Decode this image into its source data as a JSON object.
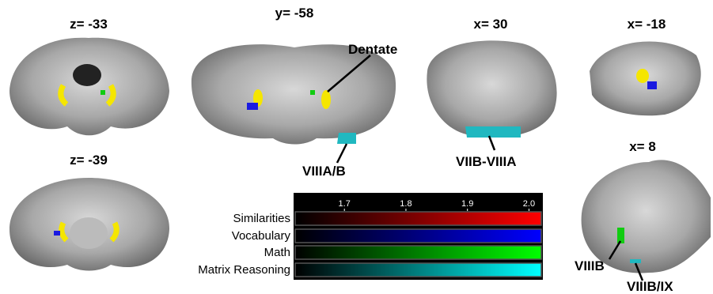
{
  "panels": [
    {
      "label": "z= -33"
    },
    {
      "label": "y= -58"
    },
    {
      "label": "x= 30"
    },
    {
      "label": "x= -18"
    },
    {
      "label": "z= -39"
    },
    {
      "label": "x= 8"
    }
  ],
  "annotations": [
    "Dentate",
    "VIIIA/B",
    "VIIB-VIIIA",
    "VIIIB",
    "VIIIB/IX"
  ],
  "colorbar": {
    "range": [
      1.62,
      2.02
    ],
    "ticks": [
      1.7,
      1.8,
      1.9,
      {
        "value": 2,
        "label": "2.0"
      }
    ],
    "rows": [
      {
        "name": "Similarities",
        "color": "#ff0000"
      },
      {
        "name": "Vocabulary",
        "color": "#0000ff"
      },
      {
        "name": "Math",
        "color": "#00ff00"
      },
      {
        "name": "Matrix Reasoning",
        "color": "#00ffff"
      }
    ]
  }
}
